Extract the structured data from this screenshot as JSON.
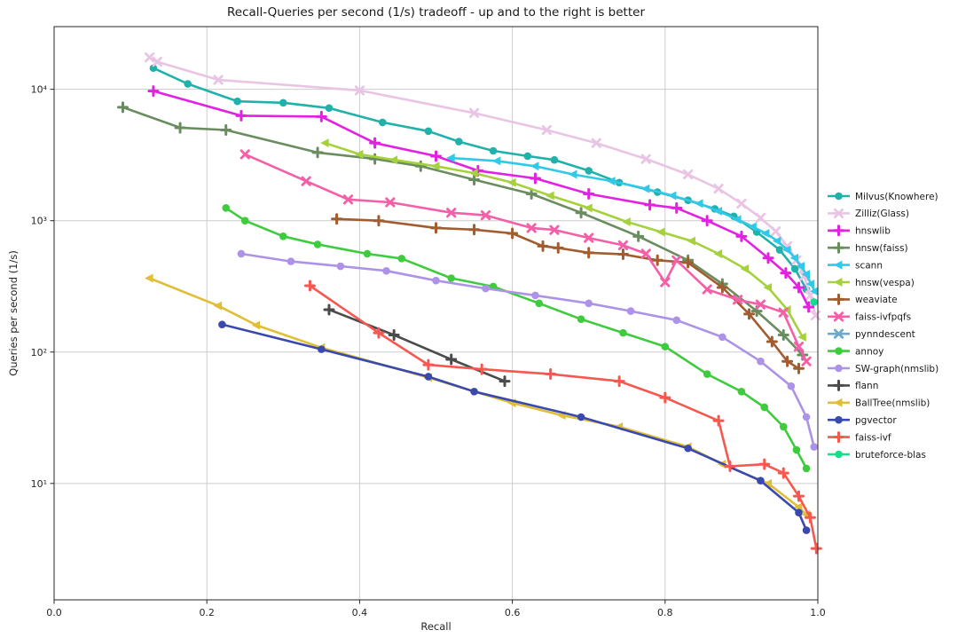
{
  "chart_data": {
    "type": "line",
    "title": "Recall-Queries per second (1/s) tradeoff - up and to the right is better",
    "xlabel": "Recall",
    "ylabel": "Queries per second (1/s)",
    "x_ticks": [
      0.0,
      0.2,
      0.4,
      0.6,
      0.8,
      1.0
    ],
    "x_tick_labels": [
      "0.0",
      "0.2",
      "0.4",
      "0.6",
      "0.8",
      "1.0"
    ],
    "y_ticks": [
      10,
      100,
      1000,
      10000
    ],
    "y_tick_labels": [
      "10¹",
      "10²",
      "10³",
      "10⁴"
    ],
    "xlim": [
      0.0,
      1.0
    ],
    "ylim": [
      1.3,
      30000
    ],
    "y_scale": "log",
    "grid": true,
    "legend_position": "right",
    "grid_color": "#cccccc",
    "axis_color": "#262626",
    "series": [
      {
        "name": "Milvus(Knowhere)",
        "color": "#20b2aa",
        "marker": "circle",
        "points": [
          [
            0.13,
            14500
          ],
          [
            0.175,
            11000
          ],
          [
            0.24,
            8100
          ],
          [
            0.3,
            7900
          ],
          [
            0.36,
            7200
          ],
          [
            0.43,
            5600
          ],
          [
            0.49,
            4800
          ],
          [
            0.53,
            4000
          ],
          [
            0.575,
            3400
          ],
          [
            0.62,
            3100
          ],
          [
            0.655,
            2900
          ],
          [
            0.7,
            2400
          ],
          [
            0.74,
            1950
          ],
          [
            0.79,
            1650
          ],
          [
            0.83,
            1430
          ],
          [
            0.865,
            1230
          ],
          [
            0.89,
            1080
          ],
          [
            0.92,
            820
          ],
          [
            0.95,
            600
          ],
          [
            0.97,
            430
          ],
          [
            0.985,
            300
          ]
        ]
      },
      {
        "name": "Zilliz(Glass)",
        "color": "#e9c4e4",
        "marker": "x",
        "points": [
          [
            0.125,
            17500
          ],
          [
            0.135,
            16200
          ],
          [
            0.215,
            11800
          ],
          [
            0.4,
            9800
          ],
          [
            0.55,
            6600
          ],
          [
            0.645,
            4900
          ],
          [
            0.71,
            3900
          ],
          [
            0.775,
            2950
          ],
          [
            0.83,
            2250
          ],
          [
            0.87,
            1750
          ],
          [
            0.9,
            1350
          ],
          [
            0.925,
            1050
          ],
          [
            0.945,
            830
          ],
          [
            0.96,
            640
          ],
          [
            0.972,
            500
          ],
          [
            0.982,
            380
          ],
          [
            0.99,
            270
          ],
          [
            0.997,
            190
          ]
        ]
      },
      {
        "name": "hnswlib",
        "color": "#e321e3",
        "marker": "plus",
        "points": [
          [
            0.13,
            9700
          ],
          [
            0.245,
            6300
          ],
          [
            0.35,
            6200
          ],
          [
            0.42,
            3900
          ],
          [
            0.5,
            3100
          ],
          [
            0.555,
            2400
          ],
          [
            0.63,
            2100
          ],
          [
            0.7,
            1600
          ],
          [
            0.78,
            1320
          ],
          [
            0.815,
            1250
          ],
          [
            0.855,
            1000
          ],
          [
            0.9,
            760
          ],
          [
            0.935,
            520
          ],
          [
            0.958,
            400
          ],
          [
            0.975,
            310
          ],
          [
            0.988,
            220
          ]
        ]
      },
      {
        "name": "hnsw(faiss)",
        "color": "#6a8d5f",
        "marker": "plus",
        "points": [
          [
            0.09,
            7300
          ],
          [
            0.165,
            5100
          ],
          [
            0.225,
            4900
          ],
          [
            0.345,
            3300
          ],
          [
            0.42,
            2950
          ],
          [
            0.48,
            2600
          ],
          [
            0.55,
            2050
          ],
          [
            0.625,
            1600
          ],
          [
            0.69,
            1150
          ],
          [
            0.765,
            760
          ],
          [
            0.83,
            500
          ],
          [
            0.875,
            330
          ],
          [
            0.92,
            205
          ],
          [
            0.955,
            135
          ],
          [
            0.98,
            95
          ]
        ]
      },
      {
        "name": "scann",
        "color": "#30c9e8",
        "marker": "tri-left",
        "points": [
          [
            0.52,
            3000
          ],
          [
            0.58,
            2850
          ],
          [
            0.63,
            2600
          ],
          [
            0.68,
            2250
          ],
          [
            0.73,
            2000
          ],
          [
            0.775,
            1750
          ],
          [
            0.81,
            1550
          ],
          [
            0.845,
            1350
          ],
          [
            0.87,
            1180
          ],
          [
            0.895,
            1020
          ],
          [
            0.915,
            900
          ],
          [
            0.932,
            800
          ],
          [
            0.947,
            700
          ],
          [
            0.96,
            600
          ],
          [
            0.97,
            520
          ],
          [
            0.978,
            450
          ],
          [
            0.985,
            390
          ],
          [
            0.991,
            330
          ],
          [
            0.996,
            290
          ]
        ]
      },
      {
        "name": "hnsw(vespa)",
        "color": "#a5d23c",
        "marker": "tri-left",
        "points": [
          [
            0.355,
            3900
          ],
          [
            0.4,
            3200
          ],
          [
            0.445,
            2900
          ],
          [
            0.5,
            2600
          ],
          [
            0.55,
            2300
          ],
          [
            0.6,
            1950
          ],
          [
            0.65,
            1550
          ],
          [
            0.7,
            1250
          ],
          [
            0.75,
            980
          ],
          [
            0.795,
            820
          ],
          [
            0.835,
            700
          ],
          [
            0.87,
            560
          ],
          [
            0.905,
            430
          ],
          [
            0.935,
            310
          ],
          [
            0.96,
            210
          ],
          [
            0.98,
            130
          ]
        ]
      },
      {
        "name": "weaviate",
        "color": "#a15d2f",
        "marker": "plus",
        "points": [
          [
            0.37,
            1030
          ],
          [
            0.425,
            1000
          ],
          [
            0.5,
            880
          ],
          [
            0.55,
            855
          ],
          [
            0.6,
            800
          ],
          [
            0.64,
            640
          ],
          [
            0.66,
            620
          ],
          [
            0.7,
            570
          ],
          [
            0.745,
            555
          ],
          [
            0.79,
            500
          ],
          [
            0.83,
            480
          ],
          [
            0.875,
            310
          ],
          [
            0.91,
            195
          ],
          [
            0.94,
            120
          ],
          [
            0.96,
            85
          ],
          [
            0.975,
            75
          ]
        ]
      },
      {
        "name": "faiss-ivfpqfs",
        "color": "#f45fa8",
        "marker": "x",
        "points": [
          [
            0.25,
            3200
          ],
          [
            0.33,
            2000
          ],
          [
            0.385,
            1450
          ],
          [
            0.44,
            1380
          ],
          [
            0.52,
            1150
          ],
          [
            0.565,
            1100
          ],
          [
            0.625,
            880
          ],
          [
            0.655,
            850
          ],
          [
            0.7,
            740
          ],
          [
            0.745,
            650
          ],
          [
            0.775,
            560
          ],
          [
            0.8,
            340
          ],
          [
            0.815,
            500
          ],
          [
            0.855,
            300
          ],
          [
            0.895,
            250
          ],
          [
            0.925,
            230
          ],
          [
            0.955,
            200
          ],
          [
            0.975,
            110
          ],
          [
            0.985,
            85
          ]
        ]
      },
      {
        "name": "pynndescent",
        "color": "#6fa8c9",
        "marker": "x",
        "points": []
      },
      {
        "name": "annoy",
        "color": "#3ecb3e",
        "marker": "circle",
        "points": [
          [
            0.225,
            1250
          ],
          [
            0.25,
            1000
          ],
          [
            0.3,
            760
          ],
          [
            0.345,
            660
          ],
          [
            0.41,
            560
          ],
          [
            0.455,
            515
          ],
          [
            0.52,
            365
          ],
          [
            0.575,
            315
          ],
          [
            0.635,
            235
          ],
          [
            0.69,
            178
          ],
          [
            0.745,
            140
          ],
          [
            0.8,
            110
          ],
          [
            0.855,
            68
          ],
          [
            0.9,
            50
          ],
          [
            0.93,
            38
          ],
          [
            0.955,
            27
          ],
          [
            0.972,
            18
          ],
          [
            0.985,
            13
          ]
        ]
      },
      {
        "name": "SW-graph(nmslib)",
        "color": "#ad93e8",
        "marker": "circle",
        "points": [
          [
            0.245,
            560
          ],
          [
            0.31,
            490
          ],
          [
            0.375,
            450
          ],
          [
            0.435,
            415
          ],
          [
            0.5,
            350
          ],
          [
            0.565,
            305
          ],
          [
            0.63,
            270
          ],
          [
            0.7,
            235
          ],
          [
            0.755,
            205
          ],
          [
            0.815,
            175
          ],
          [
            0.875,
            130
          ],
          [
            0.925,
            85
          ],
          [
            0.965,
            55
          ],
          [
            0.985,
            32
          ],
          [
            0.995,
            19
          ]
        ]
      },
      {
        "name": "flann",
        "color": "#4b4b4b",
        "marker": "plus",
        "points": [
          [
            0.36,
            210
          ],
          [
            0.445,
            135
          ],
          [
            0.52,
            88
          ],
          [
            0.59,
            60
          ]
        ]
      },
      {
        "name": "BallTree(nmslib)",
        "color": "#e0be35",
        "marker": "tri-left",
        "points": [
          [
            0.125,
            365
          ],
          [
            0.215,
            225
          ],
          [
            0.265,
            160
          ],
          [
            0.35,
            108
          ],
          [
            0.49,
            64
          ],
          [
            0.6,
            41
          ],
          [
            0.665,
            33
          ],
          [
            0.74,
            27
          ],
          [
            0.83,
            19
          ],
          [
            0.875,
            14
          ],
          [
            0.935,
            10
          ],
          [
            0.975,
            6.6
          ],
          [
            0.985,
            5.8
          ]
        ]
      },
      {
        "name": "pgvector",
        "color": "#3a49ad",
        "marker": "circle",
        "points": [
          [
            0.22,
            162
          ],
          [
            0.35,
            105
          ],
          [
            0.49,
            65
          ],
          [
            0.55,
            50
          ],
          [
            0.69,
            32
          ],
          [
            0.83,
            18.5
          ],
          [
            0.925,
            10.5
          ],
          [
            0.975,
            6
          ],
          [
            0.985,
            4.4
          ]
        ]
      },
      {
        "name": "faiss-ivf",
        "color": "#f6584f",
        "marker": "plus",
        "points": [
          [
            0.335,
            320
          ],
          [
            0.425,
            140
          ],
          [
            0.49,
            80
          ],
          [
            0.56,
            74
          ],
          [
            0.65,
            68
          ],
          [
            0.74,
            60
          ],
          [
            0.8,
            45
          ],
          [
            0.87,
            30
          ],
          [
            0.885,
            13.5
          ],
          [
            0.93,
            14
          ],
          [
            0.955,
            12
          ],
          [
            0.975,
            8
          ],
          [
            0.99,
            5.5
          ],
          [
            0.998,
            3.2
          ]
        ]
      },
      {
        "name": "bruteforce-blas",
        "color": "#16dd8c",
        "marker": "circle",
        "points": [
          [
            0.995,
            240
          ]
        ]
      }
    ]
  }
}
